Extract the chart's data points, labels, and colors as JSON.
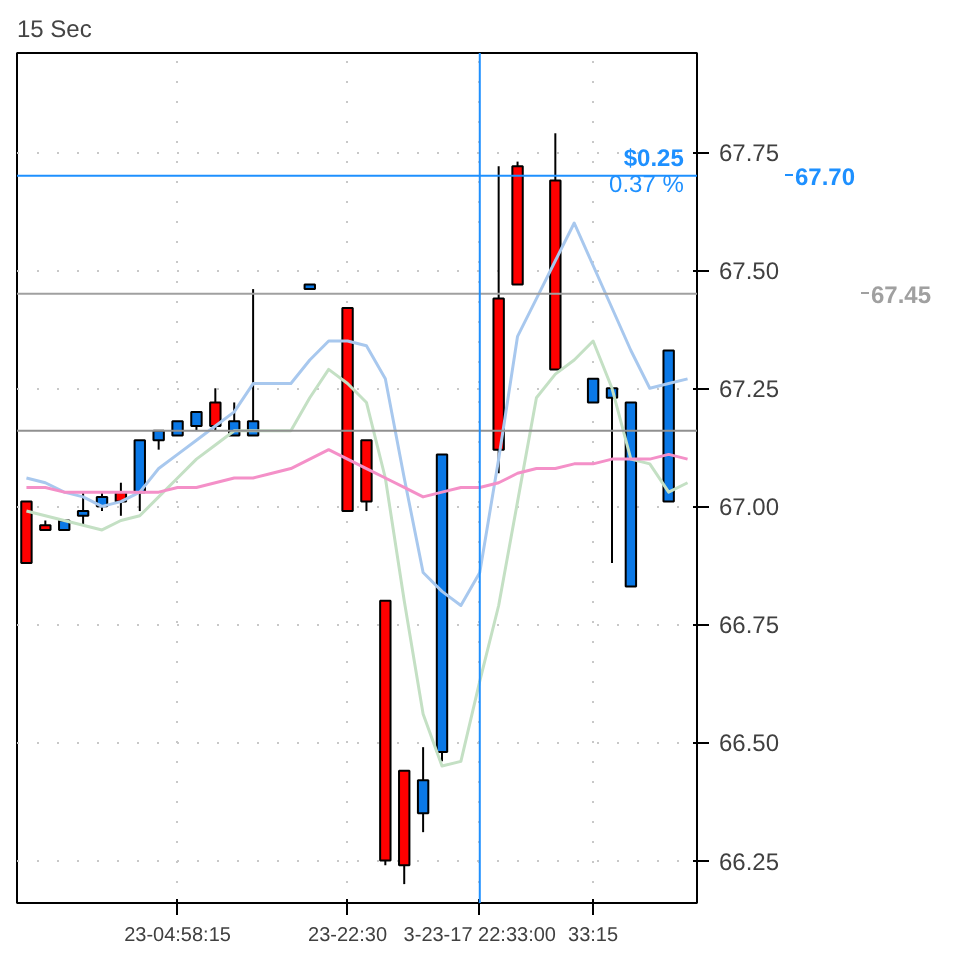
{
  "chart_data": {
    "type": "candlestick",
    "title": "15 Sec",
    "categories": [
      null,
      null,
      null,
      null,
      null,
      null,
      null,
      null,
      "23-04:58:15",
      null,
      null,
      null,
      null,
      null,
      null,
      null,
      null,
      "23-22:30",
      null,
      null,
      null,
      null,
      null,
      null,
      "3-23-17 22:33:00",
      null,
      null,
      null,
      null,
      null,
      "33:15",
      null,
      null,
      null,
      null,
      null
    ],
    "ohlc": [
      [
        67.01,
        67.01,
        66.88,
        66.88
      ],
      [
        66.96,
        66.97,
        66.95,
        66.95
      ],
      [
        66.95,
        66.97,
        66.95,
        66.97
      ],
      [
        66.98,
        67.03,
        66.96,
        66.99
      ],
      [
        67.0,
        67.03,
        66.99,
        67.02
      ],
      [
        67.03,
        67.05,
        66.98,
        67.01
      ],
      [
        67.03,
        67.14,
        66.99,
        67.14
      ],
      [
        67.14,
        67.16,
        67.12,
        67.16
      ],
      [
        67.15,
        67.18,
        67.15,
        67.18
      ],
      [
        67.17,
        67.2,
        67.16,
        67.2
      ],
      [
        67.22,
        67.25,
        67.16,
        67.17
      ],
      [
        67.15,
        67.22,
        67.15,
        67.18
      ],
      [
        67.15,
        67.46,
        67.15,
        67.18
      ],
      null,
      null,
      [
        67.46,
        67.47,
        67.46,
        67.47
      ],
      null,
      [
        67.42,
        67.42,
        66.99,
        66.99
      ],
      [
        67.14,
        67.14,
        66.99,
        67.01
      ],
      [
        66.8,
        66.8,
        66.24,
        66.25
      ],
      [
        66.44,
        66.44,
        66.2,
        66.24
      ],
      [
        66.35,
        66.49,
        66.31,
        66.42
      ],
      [
        66.48,
        67.11,
        66.46,
        67.11
      ],
      null,
      null,
      [
        67.44,
        67.72,
        67.07,
        67.12
      ],
      [
        67.72,
        67.73,
        67.47,
        67.47
      ],
      null,
      [
        67.69,
        67.79,
        67.29,
        67.29
      ],
      null,
      [
        67.22,
        67.27,
        67.22,
        67.27
      ],
      [
        67.23,
        67.25,
        66.88,
        67.25
      ],
      [
        66.83,
        67.22,
        66.83,
        67.22
      ],
      null,
      [
        67.01,
        67.33,
        67.01,
        67.33
      ],
      null
    ],
    "colors": [
      "#ff0000",
      "#ff0000",
      "#0a78e6",
      "#0a78e6",
      "#0a78e6",
      "#ff0000",
      "#0a78e6",
      "#0a78e6",
      "#0a78e6",
      "#0a78e6",
      "#ff0000",
      "#0a78e6",
      "#0a78e6",
      null,
      null,
      "#0a78e6",
      null,
      "#ff0000",
      "#ff0000",
      "#ff0000",
      "#ff0000",
      "#0a78e6",
      "#0a78e6",
      null,
      null,
      "#ff0000",
      "#ff0000",
      null,
      "#ff0000",
      null,
      "#0a78e6",
      "#0a78e6",
      "#0a78e6",
      null,
      "#0a78e6",
      null
    ],
    "series": [
      {
        "type": "line",
        "color": "#a8c8ee",
        "values": [
          67.06,
          67.05,
          67.03,
          67.02,
          67.0,
          67.01,
          67.03,
          67.08,
          67.11,
          67.14,
          67.17,
          67.2,
          67.26,
          67.26,
          67.26,
          67.31,
          67.35,
          67.35,
          67.34,
          67.27,
          67.06,
          66.86,
          66.82,
          66.79,
          66.86,
          67.1,
          67.36,
          67.44,
          67.52,
          67.6,
          67.51,
          67.42,
          67.33,
          67.25,
          67.26,
          67.27
        ]
      },
      {
        "type": "line",
        "color": "#c4e0c4",
        "values": [
          66.99,
          66.98,
          66.97,
          66.96,
          66.95,
          66.97,
          66.98,
          67.02,
          67.06,
          67.1,
          67.13,
          67.16,
          67.16,
          67.16,
          67.16,
          67.23,
          67.29,
          67.26,
          67.22,
          67.06,
          66.8,
          66.56,
          66.45,
          66.46,
          66.63,
          66.79,
          67.01,
          67.23,
          67.28,
          67.31,
          67.35,
          67.25,
          67.1,
          67.09,
          67.03,
          67.05
        ]
      },
      {
        "type": "line",
        "color": "#f490c8",
        "values": [
          67.04,
          67.04,
          67.03,
          67.03,
          67.03,
          67.03,
          67.03,
          67.03,
          67.04,
          67.04,
          67.05,
          67.06,
          67.06,
          67.07,
          67.08,
          67.1,
          67.12,
          67.1,
          67.08,
          67.06,
          67.04,
          67.02,
          67.03,
          67.04,
          67.04,
          67.05,
          67.07,
          67.08,
          67.08,
          67.09,
          67.09,
          67.1,
          67.1,
          67.1,
          67.11,
          67.1
        ]
      }
    ],
    "ylim": [
      66.16,
      67.96
    ],
    "yticks": [
      {
        "value": 66.25,
        "label": "66.25"
      },
      {
        "value": 66.5,
        "label": "66.50"
      },
      {
        "value": 66.75,
        "label": "66.75"
      },
      {
        "value": 67.0,
        "label": "67.00"
      },
      {
        "value": 67.25,
        "label": "67.25"
      },
      {
        "value": 67.5,
        "label": "67.50"
      },
      {
        "value": 67.75,
        "label": "67.75"
      }
    ],
    "ref_lines": [
      {
        "axis": "y",
        "value": 67.7,
        "label": "67.70",
        "color": "#1e90ff"
      },
      {
        "axis": "y",
        "value": 67.45,
        "label": "67.45",
        "color": "#a0a0a0"
      },
      {
        "axis": "y",
        "value": 67.16,
        "color": "#909090"
      },
      {
        "axis": "x",
        "value": "3-23-17 22:33:00",
        "color": "#1e90ff"
      }
    ],
    "annotations": [
      "$0.25",
      "0.37 %"
    ],
    "grid": true
  }
}
